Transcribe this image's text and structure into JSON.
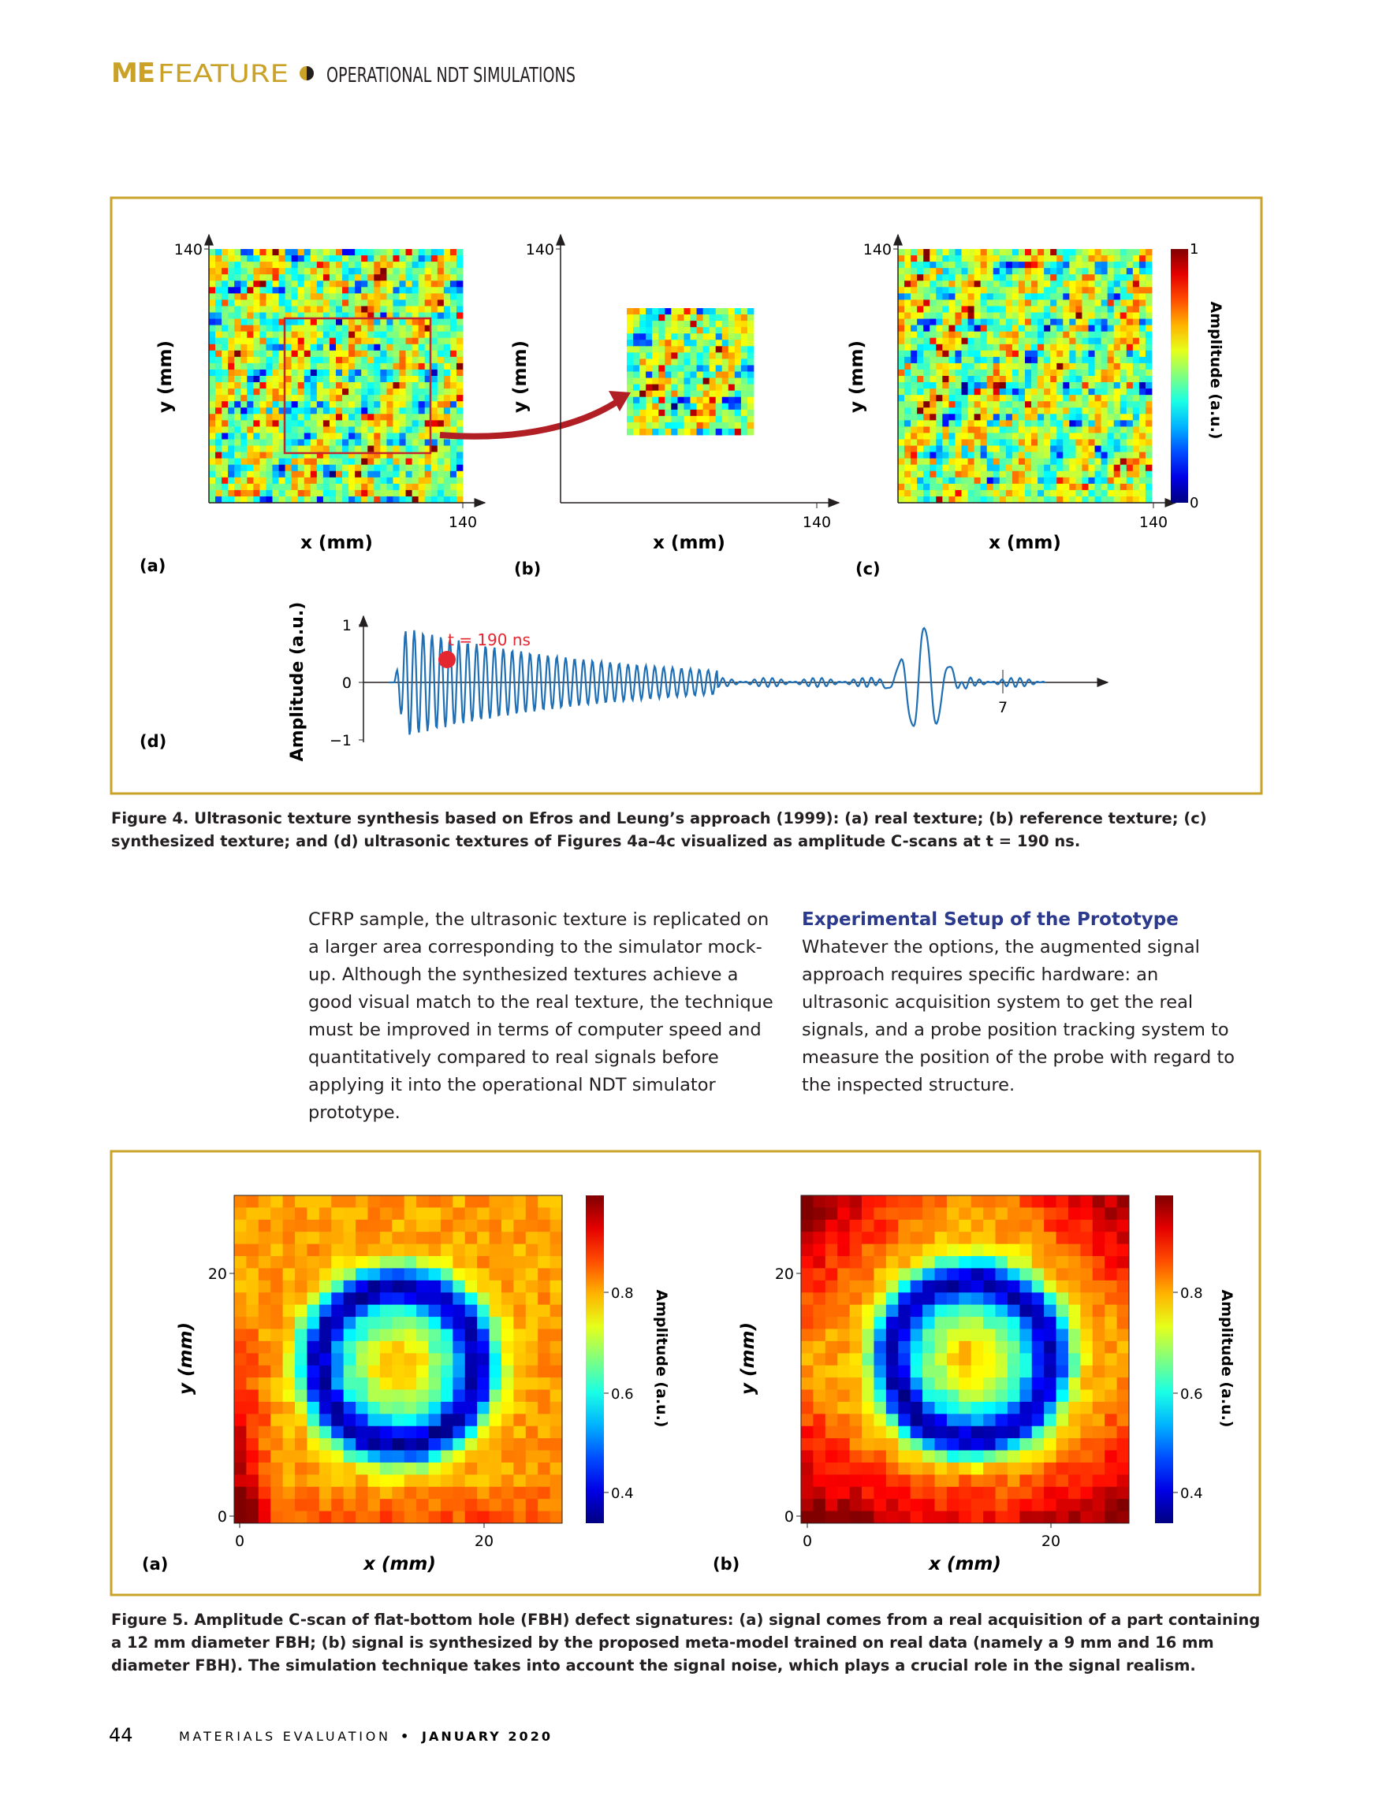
{
  "header": {
    "brand": "ME",
    "section": "FEATURE",
    "topic": "OPERATIONAL NDT SIMULATIONS"
  },
  "figure4": {
    "panels": [
      {
        "label": "(a)",
        "x_label": "x (mm)",
        "y_label": "y (mm)",
        "x_tick": "140",
        "y_tick": "140"
      },
      {
        "label": "(b)",
        "x_label": "x (mm)",
        "y_label": "y (mm)",
        "x_tick": "140",
        "y_tick": "140"
      },
      {
        "label": "(c)",
        "x_label": "x (mm)",
        "y_label": "y (mm)",
        "x_tick": "140",
        "y_tick": "140"
      }
    ],
    "colorbar": {
      "label": "Amplitude (a.u.)",
      "top_tick": "1",
      "bottom_tick": "0"
    },
    "signal": {
      "label": "(d)",
      "y_label": "Amplitude (a.u.)",
      "y_ticks": [
        "1",
        "0",
        "−1"
      ],
      "x_tick": "7",
      "annotation": "t = 190 ns"
    },
    "caption": "Figure 4. Ultrasonic texture synthesis based on Efros and Leung’s approach (1999): (a) real texture; (b) reference texture; (c) synthesized texture; and (d) ultrasonic textures of Figures 4a–4c visualized as amplitude C-scans at t = 190 ns."
  },
  "body": {
    "left": "CFRP sample, the ultrasonic texture is replicated on a larger area corresponding to the simulator mock-up. Although the synthesized textures achieve a good visual match to the real texture, the technique must be improved in terms of computer speed and quantitatively compared to real signals before applying it into the operational NDT simulator prototype.",
    "right_heading": "Experimental Setup of the Prototype",
    "right": "Whatever the options, the augmented signal approach requires specific hardware: an ultrasonic acquisition system to get the real signals, and a probe position tracking system to measure the position of the probe with regard to the inspected structure."
  },
  "figure5": {
    "panels": [
      {
        "label": "(a)",
        "x_label": "x (mm)",
        "y_label": "y (mm)",
        "x_ticks": [
          "0",
          "20"
        ],
        "y_ticks": [
          "20",
          "0"
        ],
        "colorbar_label": "Amplitude (a.u.)",
        "colorbar_ticks": [
          "0.8",
          "0.6",
          "0.4"
        ]
      },
      {
        "label": "(b)",
        "x_label": "x (mm)",
        "y_label": "y (mm)",
        "x_ticks": [
          "0",
          "20"
        ],
        "y_ticks": [
          "20",
          "0"
        ],
        "colorbar_label": "Amplitude (a.u.)",
        "colorbar_ticks": [
          "0.8",
          "0.6",
          "0.4"
        ]
      }
    ],
    "caption": "Figure 5. Amplitude C-scan of flat-bottom hole (FBH) defect signatures: (a) signal comes from a real acquisition of a part containing a 12 mm diameter FBH; (b) signal is synthesized by the proposed meta-model trained on real data (namely a 9 mm and 16 mm diameter FBH). The simulation technique takes into account the signal noise, which plays a crucial role in the signal realism."
  },
  "footer": {
    "page": "44",
    "journal": "MATERIALS EVALUATION",
    "separator": "•",
    "issue": "JANUARY 2020"
  }
}
